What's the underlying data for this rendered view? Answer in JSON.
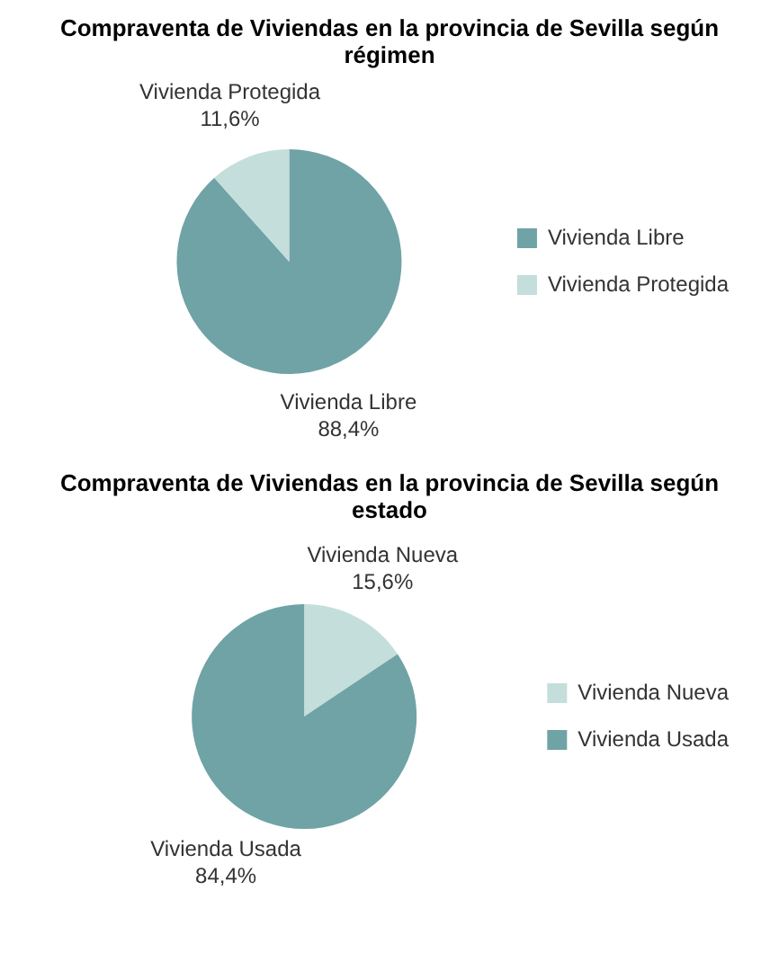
{
  "chart_data": [
    {
      "type": "pie",
      "title": "Compraventa de Viviendas en la provincia de Sevilla según régimen",
      "categories": [
        "Vivienda Libre",
        "Vivienda Protegida"
      ],
      "values": [
        88.4,
        11.6
      ],
      "value_labels": [
        "88,4%",
        "11,6%"
      ],
      "colors": [
        "#6fa3a6",
        "#c4dedb"
      ],
      "legend": "right"
    },
    {
      "type": "pie",
      "title": "Compraventa de Viviendas en la provincia de Sevilla según estado",
      "categories": [
        "Vivienda Nueva",
        "Vivienda Usada"
      ],
      "values": [
        15.6,
        84.4
      ],
      "value_labels": [
        "15,6%",
        "84,4%"
      ],
      "colors": [
        "#c4dedb",
        "#6fa3a6"
      ],
      "legend": "right"
    }
  ]
}
